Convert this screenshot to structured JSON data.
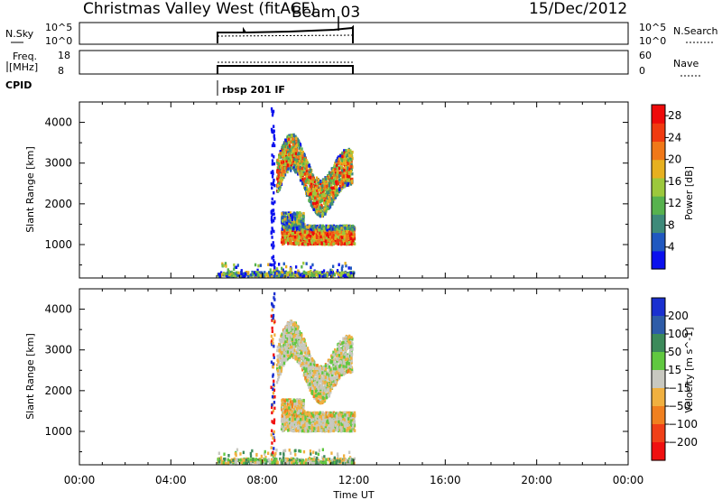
{
  "header": {
    "station": "Christmas Valley West (fitACF)",
    "beam": "Beam 03",
    "date": "15/Dec/2012"
  },
  "strip_sky": {
    "left_label": "N.Sky",
    "ticks_left": [
      "10^5",
      "10^0"
    ],
    "ticks_right": [
      "10^5",
      "10^0"
    ],
    "right_label": "N.Search"
  },
  "strip_freq": {
    "left_label_top": "Freq.",
    "left_label_bottom": "[MHz]",
    "ticks_left": [
      "18",
      "8"
    ],
    "ticks_right": [
      "60",
      "0"
    ],
    "right_label": "Nave"
  },
  "cpid": {
    "label": "CPID",
    "program": "rbsp 201 IF"
  },
  "chart_data": [
    {
      "type": "heatmap",
      "name": "power",
      "xlabel": "Time UT",
      "ylabel": "Slant Range [km]",
      "xlim": [
        0,
        24
      ],
      "ylim": [
        180,
        4500
      ],
      "xticks": [
        "00:00",
        "04:00",
        "08:00",
        "12:00",
        "16:00",
        "20:00",
        "00:00"
      ],
      "yticks": [
        1000,
        2000,
        3000,
        4000
      ],
      "data_time_range_hours": [
        6.0,
        12.0
      ],
      "colorbar": {
        "label": "Power [dB]",
        "ticks": [
          4,
          8,
          12,
          16,
          20,
          24,
          28
        ],
        "range": [
          0,
          30
        ],
        "colors": [
          "#0a10ee",
          "#2058c0",
          "#3e8a7a",
          "#57b24e",
          "#9cc83c",
          "#e6b020",
          "#f07818",
          "#f03a10",
          "#ee0a0a"
        ]
      }
    },
    {
      "type": "heatmap",
      "name": "velocity",
      "xlabel": "Time UT",
      "ylabel": "Slant Range [km]",
      "xlim": [
        0,
        24
      ],
      "ylim": [
        180,
        4500
      ],
      "xticks": [
        "00:00",
        "04:00",
        "08:00",
        "12:00",
        "16:00",
        "20:00",
        "00:00"
      ],
      "yticks": [
        1000,
        2000,
        3000,
        4000
      ],
      "data_time_range_hours": [
        6.0,
        12.0
      ],
      "colorbar": {
        "label": "Velocity [m s^-1]",
        "ticks": [
          200,
          100,
          50,
          15,
          -15,
          -50,
          -100,
          -200
        ],
        "range": [
          -250,
          250
        ],
        "colors": [
          "#1a30d0",
          "#2e5ca8",
          "#3c8a5a",
          "#60c840",
          "#c8c8c0",
          "#f0b040",
          "#f08020",
          "#f04018",
          "#f01010"
        ]
      }
    }
  ]
}
